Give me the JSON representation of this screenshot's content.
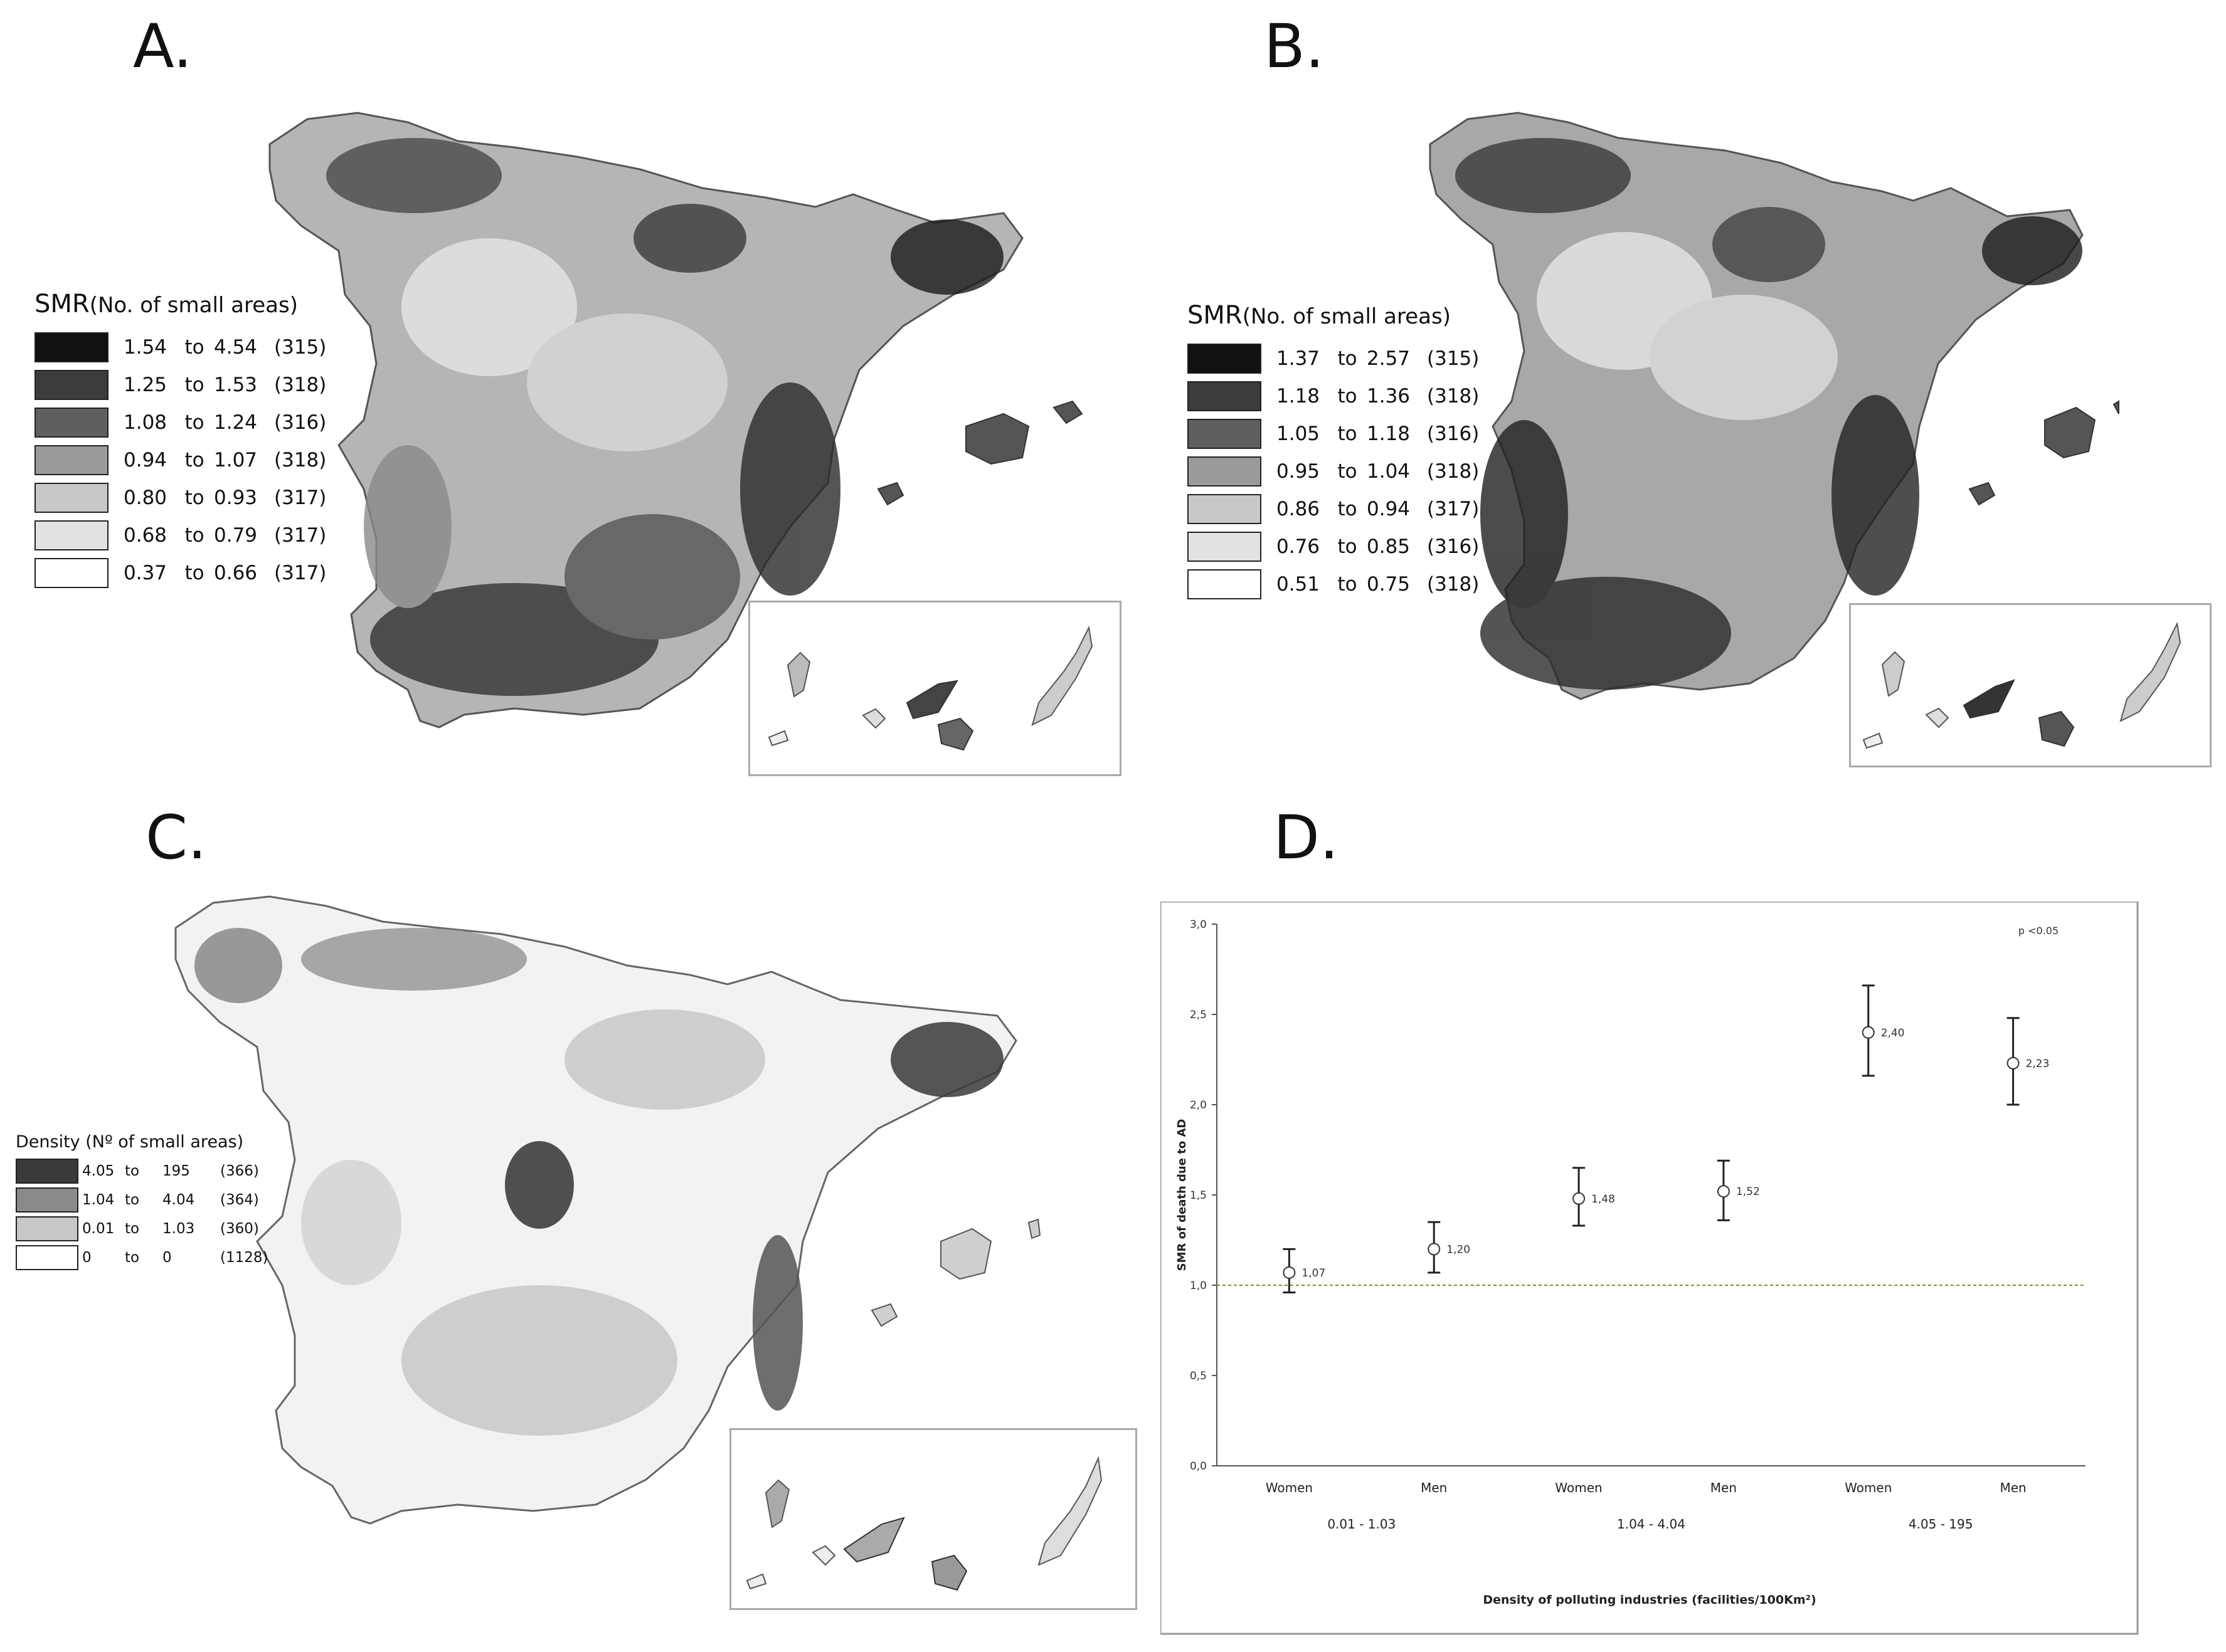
{
  "panels": {
    "A": {
      "label": "A.",
      "legend": {
        "title_main": "SMR",
        "title_sub": "(No. of small areas)",
        "classes": [
          {
            "lo": "1.54",
            "to": "to",
            "hi": "4.54",
            "n": "(315)",
            "color": "#111111"
          },
          {
            "lo": "1.25",
            "to": "to",
            "hi": "1.53",
            "n": "(318)",
            "color": "#3c3c3c"
          },
          {
            "lo": "1.08",
            "to": "to",
            "hi": "1.24",
            "n": "(316)",
            "color": "#5f5f5f"
          },
          {
            "lo": "0.94",
            "to": "to",
            "hi": "1.07",
            "n": "(318)",
            "color": "#9a9a9a"
          },
          {
            "lo": "0.80",
            "to": "to",
            "hi": "0.93",
            "n": "(317)",
            "color": "#c8c8c8"
          },
          {
            "lo": "0.68",
            "to": "to",
            "hi": "0.79",
            "n": "(317)",
            "color": "#e2e2e2"
          },
          {
            "lo": "0.37",
            "to": "to",
            "hi": "0.66",
            "n": "(317)",
            "color": "#ffffff"
          }
        ]
      }
    },
    "B": {
      "label": "B.",
      "legend": {
        "title_main": "SMR",
        "title_sub": "(No. of small areas)",
        "classes": [
          {
            "lo": "1.37",
            "to": "to",
            "hi": "2.57",
            "n": "(315)",
            "color": "#111111"
          },
          {
            "lo": "1.18",
            "to": "to",
            "hi": "1.36",
            "n": "(318)",
            "color": "#3c3c3c"
          },
          {
            "lo": "1.05",
            "to": "to",
            "hi": "1.18",
            "n": "(316)",
            "color": "#5f5f5f"
          },
          {
            "lo": "0.95",
            "to": "to",
            "hi": "1.04",
            "n": "(318)",
            "color": "#9a9a9a"
          },
          {
            "lo": "0.86",
            "to": "to",
            "hi": "0.94",
            "n": "(317)",
            "color": "#c8c8c8"
          },
          {
            "lo": "0.76",
            "to": "to",
            "hi": "0.85",
            "n": "(316)",
            "color": "#e2e2e2"
          },
          {
            "lo": "0.51",
            "to": "to",
            "hi": "0.75",
            "n": "(318)",
            "color": "#ffffff"
          }
        ]
      }
    },
    "C": {
      "label": "C.",
      "legend": {
        "title_main": "Density",
        "title_sub": "(Nº of small areas)",
        "classes": [
          {
            "lo": "4.05",
            "to": "to",
            "hi": "195",
            "n": "(366)",
            "color": "#3a3a3a"
          },
          {
            "lo": "1.04",
            "to": "to",
            "hi": "4.04",
            "n": "(364)",
            "color": "#8a8a8a"
          },
          {
            "lo": "0.01",
            "to": "to",
            "hi": "1.03",
            "n": "(360)",
            "color": "#c8c8c8"
          },
          {
            "lo": "0",
            "to": "to",
            "hi": "0",
            "n": "(1128)",
            "color": "#ffffff"
          }
        ]
      }
    },
    "D": {
      "label": "D."
    }
  },
  "chart_data": {
    "type": "scatter",
    "title": "",
    "xlabel": "Density of polluting industries (facilities/100Km²)",
    "ylabel": "SMR of death due to AD",
    "ylim": [
      0,
      3
    ],
    "yticks": [
      "0,0",
      "0,5",
      "1,0",
      "1,5",
      "2,0",
      "2,5",
      "3,0"
    ],
    "reference_line": 1.0,
    "annotation": "p <0.05",
    "groups": [
      "0.01 - 1.03",
      "1.04 - 4.04",
      "4.05 - 195"
    ],
    "points": [
      {
        "group": "0.01 - 1.03",
        "sex": "Women",
        "value": 1.07,
        "label": "1,07",
        "ci_low": 0.96,
        "ci_high": 1.2
      },
      {
        "group": "0.01 - 1.03",
        "sex": "Men",
        "value": 1.2,
        "label": "1,20",
        "ci_low": 1.07,
        "ci_high": 1.35
      },
      {
        "group": "1.04 - 4.04",
        "sex": "Women",
        "value": 1.48,
        "label": "1,48",
        "ci_low": 1.33,
        "ci_high": 1.65
      },
      {
        "group": "1.04 - 4.04",
        "sex": "Men",
        "value": 1.52,
        "label": "1,52",
        "ci_low": 1.36,
        "ci_high": 1.69
      },
      {
        "group": "4.05 - 195",
        "sex": "Women",
        "value": 2.4,
        "label": "2,40",
        "ci_low": 2.16,
        "ci_high": 2.66
      },
      {
        "group": "4.05 - 195",
        "sex": "Men",
        "value": 2.23,
        "label": "2,23",
        "ci_low": 2.0,
        "ci_high": 2.48
      }
    ]
  }
}
